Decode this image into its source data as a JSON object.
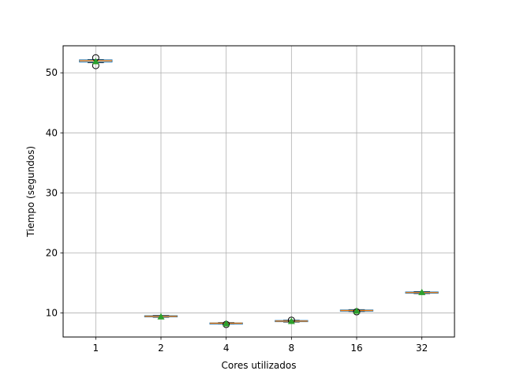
{
  "chart_data": {
    "type": "box",
    "xlabel": "Cores utilizados",
    "ylabel": "Tiempo (segundos)",
    "ylim": [
      6,
      54.5
    ],
    "yticks": [
      10,
      20,
      30,
      40,
      50
    ],
    "grid": true,
    "categories": [
      "1",
      "2",
      "4",
      "8",
      "16",
      "32"
    ],
    "boxes": [
      {
        "category": "1",
        "q1": 51.8,
        "median": 52.0,
        "q3": 52.15,
        "whislo": 51.7,
        "whishi": 52.2,
        "mean": 51.9,
        "fliers": [
          52.5,
          51.2
        ]
      },
      {
        "category": "2",
        "q1": 9.35,
        "median": 9.45,
        "q3": 9.55,
        "whislo": 9.3,
        "whishi": 9.6,
        "mean": 9.4,
        "fliers": []
      },
      {
        "category": "4",
        "q1": 8.25,
        "median": 8.3,
        "q3": 8.35,
        "whislo": 8.2,
        "whishi": 8.4,
        "mean": 8.25,
        "fliers": [
          8.1
        ]
      },
      {
        "category": "8",
        "q1": 8.55,
        "median": 8.65,
        "q3": 8.75,
        "whislo": 8.5,
        "whishi": 8.8,
        "mean": 8.65,
        "fliers": [
          8.8
        ]
      },
      {
        "category": "16",
        "q1": 10.3,
        "median": 10.4,
        "q3": 10.5,
        "whislo": 10.25,
        "whishi": 10.55,
        "mean": 10.35,
        "fliers": [
          10.2
        ]
      },
      {
        "category": "32",
        "q1": 13.3,
        "median": 13.4,
        "q3": 13.5,
        "whislo": 13.25,
        "whishi": 13.55,
        "mean": 13.45,
        "fliers": []
      }
    ],
    "colors": {
      "box": "#1f77b4",
      "median": "#ff7f0e",
      "mean_marker": "#2ca02c",
      "whisker": "#000000",
      "grid": "#b0b0b0"
    }
  }
}
